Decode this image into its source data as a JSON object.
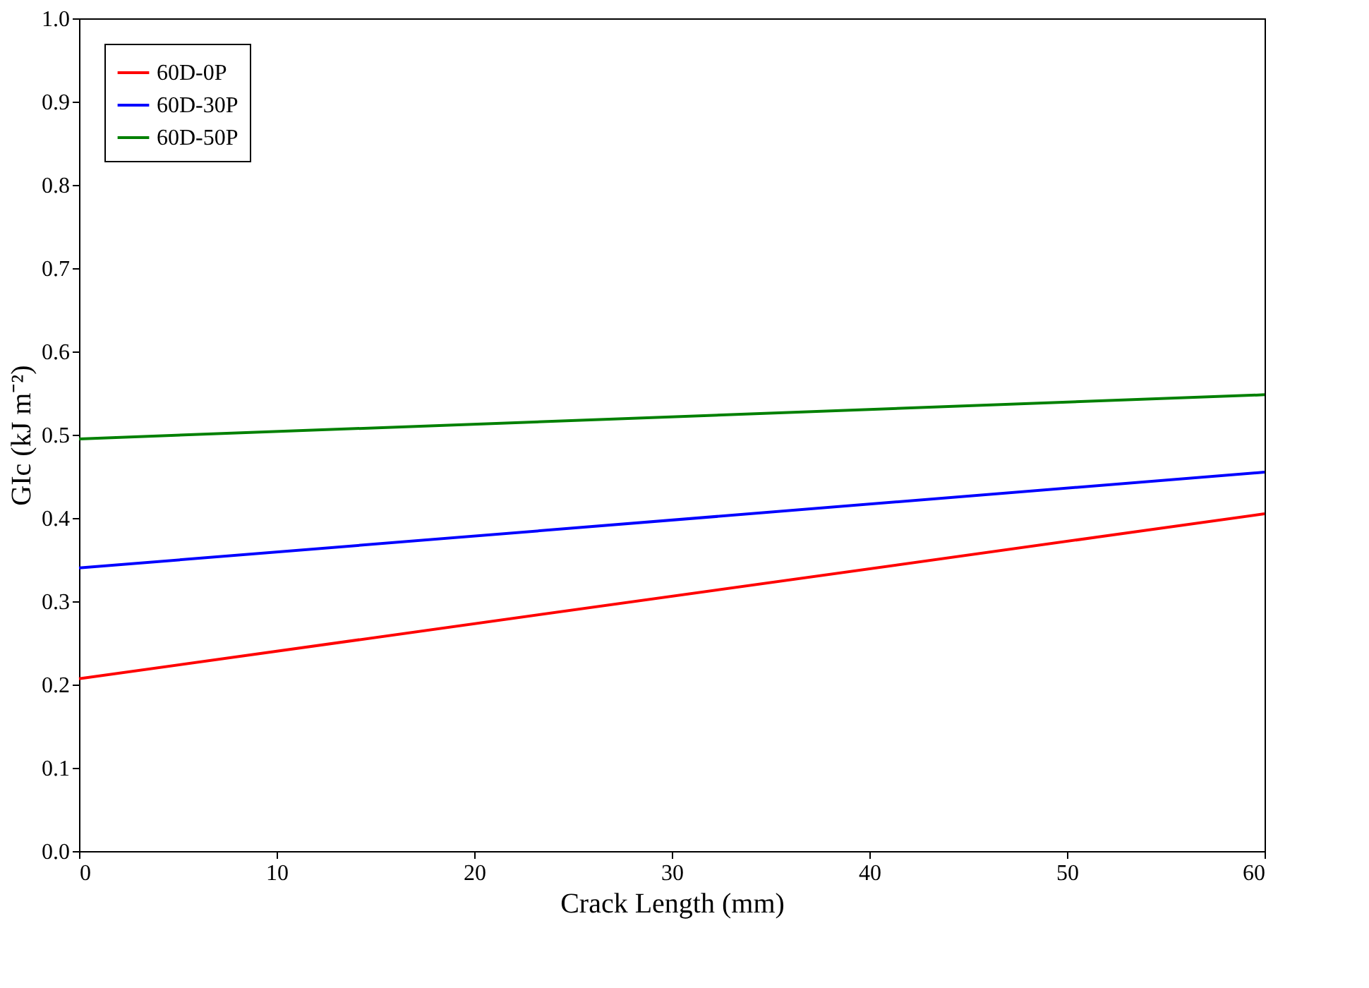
{
  "chart_data": {
    "type": "line",
    "xlabel": "Crack Length (mm)",
    "ylabel": "GIc (kJ m⁻²)",
    "x": [
      0,
      60
    ],
    "series": [
      {
        "name": "60D-0P",
        "color": "#ff0000",
        "values": [
          0.207,
          0.405
        ]
      },
      {
        "name": "60D-30P",
        "color": "#0000ff",
        "values": [
          0.34,
          0.455
        ]
      },
      {
        "name": "60D-50P",
        "color": "#008000",
        "values": [
          0.495,
          0.548
        ]
      }
    ],
    "xlim": [
      0,
      60
    ],
    "xticks": [
      0,
      10,
      20,
      30,
      40,
      50,
      60
    ],
    "ylim": [
      0,
      1
    ],
    "yticks": [
      {
        "value": 0,
        "label": "0.0"
      },
      0.1,
      0.2,
      0.3,
      0.4,
      0.5,
      0.6,
      0.7,
      0.8,
      0.9,
      {
        "value": 1,
        "label": "1.0"
      }
    ],
    "grid": false,
    "legend": "top left",
    "marker": "none",
    "line_style": "solid"
  }
}
